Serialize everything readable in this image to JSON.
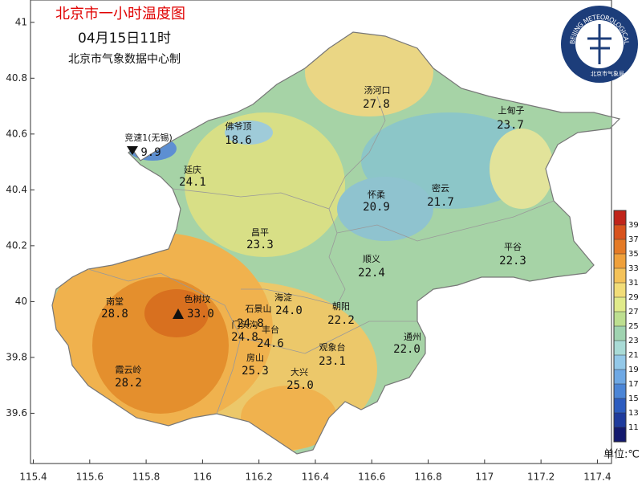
{
  "header": {
    "title": "北京市一小时温度图",
    "time": "04月15日11时",
    "producer": "北京市气象数据中心制"
  },
  "logo": {
    "english": "BEIJING METEOROLOGICAL SERVICE",
    "chinese": "北京市气象局"
  },
  "map": {
    "xlim": [
      115.39,
      117.45
    ],
    "ylim": [
      39.42,
      41.08
    ],
    "xticks": [
      115.4,
      115.6,
      115.8,
      116,
      116.2,
      116.4,
      116.6,
      116.8,
      117,
      117.2,
      117.4
    ],
    "yticks": [
      39.6,
      39.8,
      40,
      40.2,
      40.4,
      40.6,
      40.8,
      41
    ],
    "stations": [
      {
        "name": "汤河口",
        "value": "27.8"
      },
      {
        "name": "上甸子",
        "value": "23.7"
      },
      {
        "name": "佛爷顶",
        "value": "18.6"
      },
      {
        "name": "竞速1(无锡)",
        "value": "9.9"
      },
      {
        "name": "延庆",
        "value": "24.1"
      },
      {
        "name": "怀柔",
        "value": "20.9"
      },
      {
        "name": "密云",
        "value": "21.7"
      },
      {
        "name": "昌平",
        "value": "23.3"
      },
      {
        "name": "平谷",
        "value": "22.3"
      },
      {
        "name": "顺义",
        "value": "22.4"
      },
      {
        "name": "南堂",
        "value": "28.8"
      },
      {
        "name": "色树坟",
        "value": "33.0"
      },
      {
        "name": "海淀",
        "value": "24.0"
      },
      {
        "name": "石景山",
        "value": "24.8"
      },
      {
        "name": "朝阳",
        "value": "22.2"
      },
      {
        "name": "门头沟",
        "value": "24.8"
      },
      {
        "name": "丰台",
        "value": "24.6"
      },
      {
        "name": "通州",
        "value": "22.0"
      },
      {
        "name": "观象台",
        "value": "23.1"
      },
      {
        "name": "房山",
        "value": "25.3"
      },
      {
        "name": "霞云岭",
        "value": "28.2"
      },
      {
        "name": "大兴",
        "value": "25.0"
      }
    ]
  },
  "colorbar": {
    "ticks": [
      11,
      13,
      15,
      17,
      19,
      21,
      23,
      25,
      27,
      29,
      31,
      33,
      35,
      37,
      39
    ],
    "colors": [
      "#141a6e",
      "#1f3b9c",
      "#2c5cbf",
      "#4b85d6",
      "#6ea8e4",
      "#93c8e8",
      "#a9dbd6",
      "#9fd3b0",
      "#bddf90",
      "#e0ea8a",
      "#f2dd78",
      "#f4c259",
      "#efa03b",
      "#e47a26",
      "#d8521c",
      "#c0241a"
    ],
    "unit": "单位:℃"
  }
}
